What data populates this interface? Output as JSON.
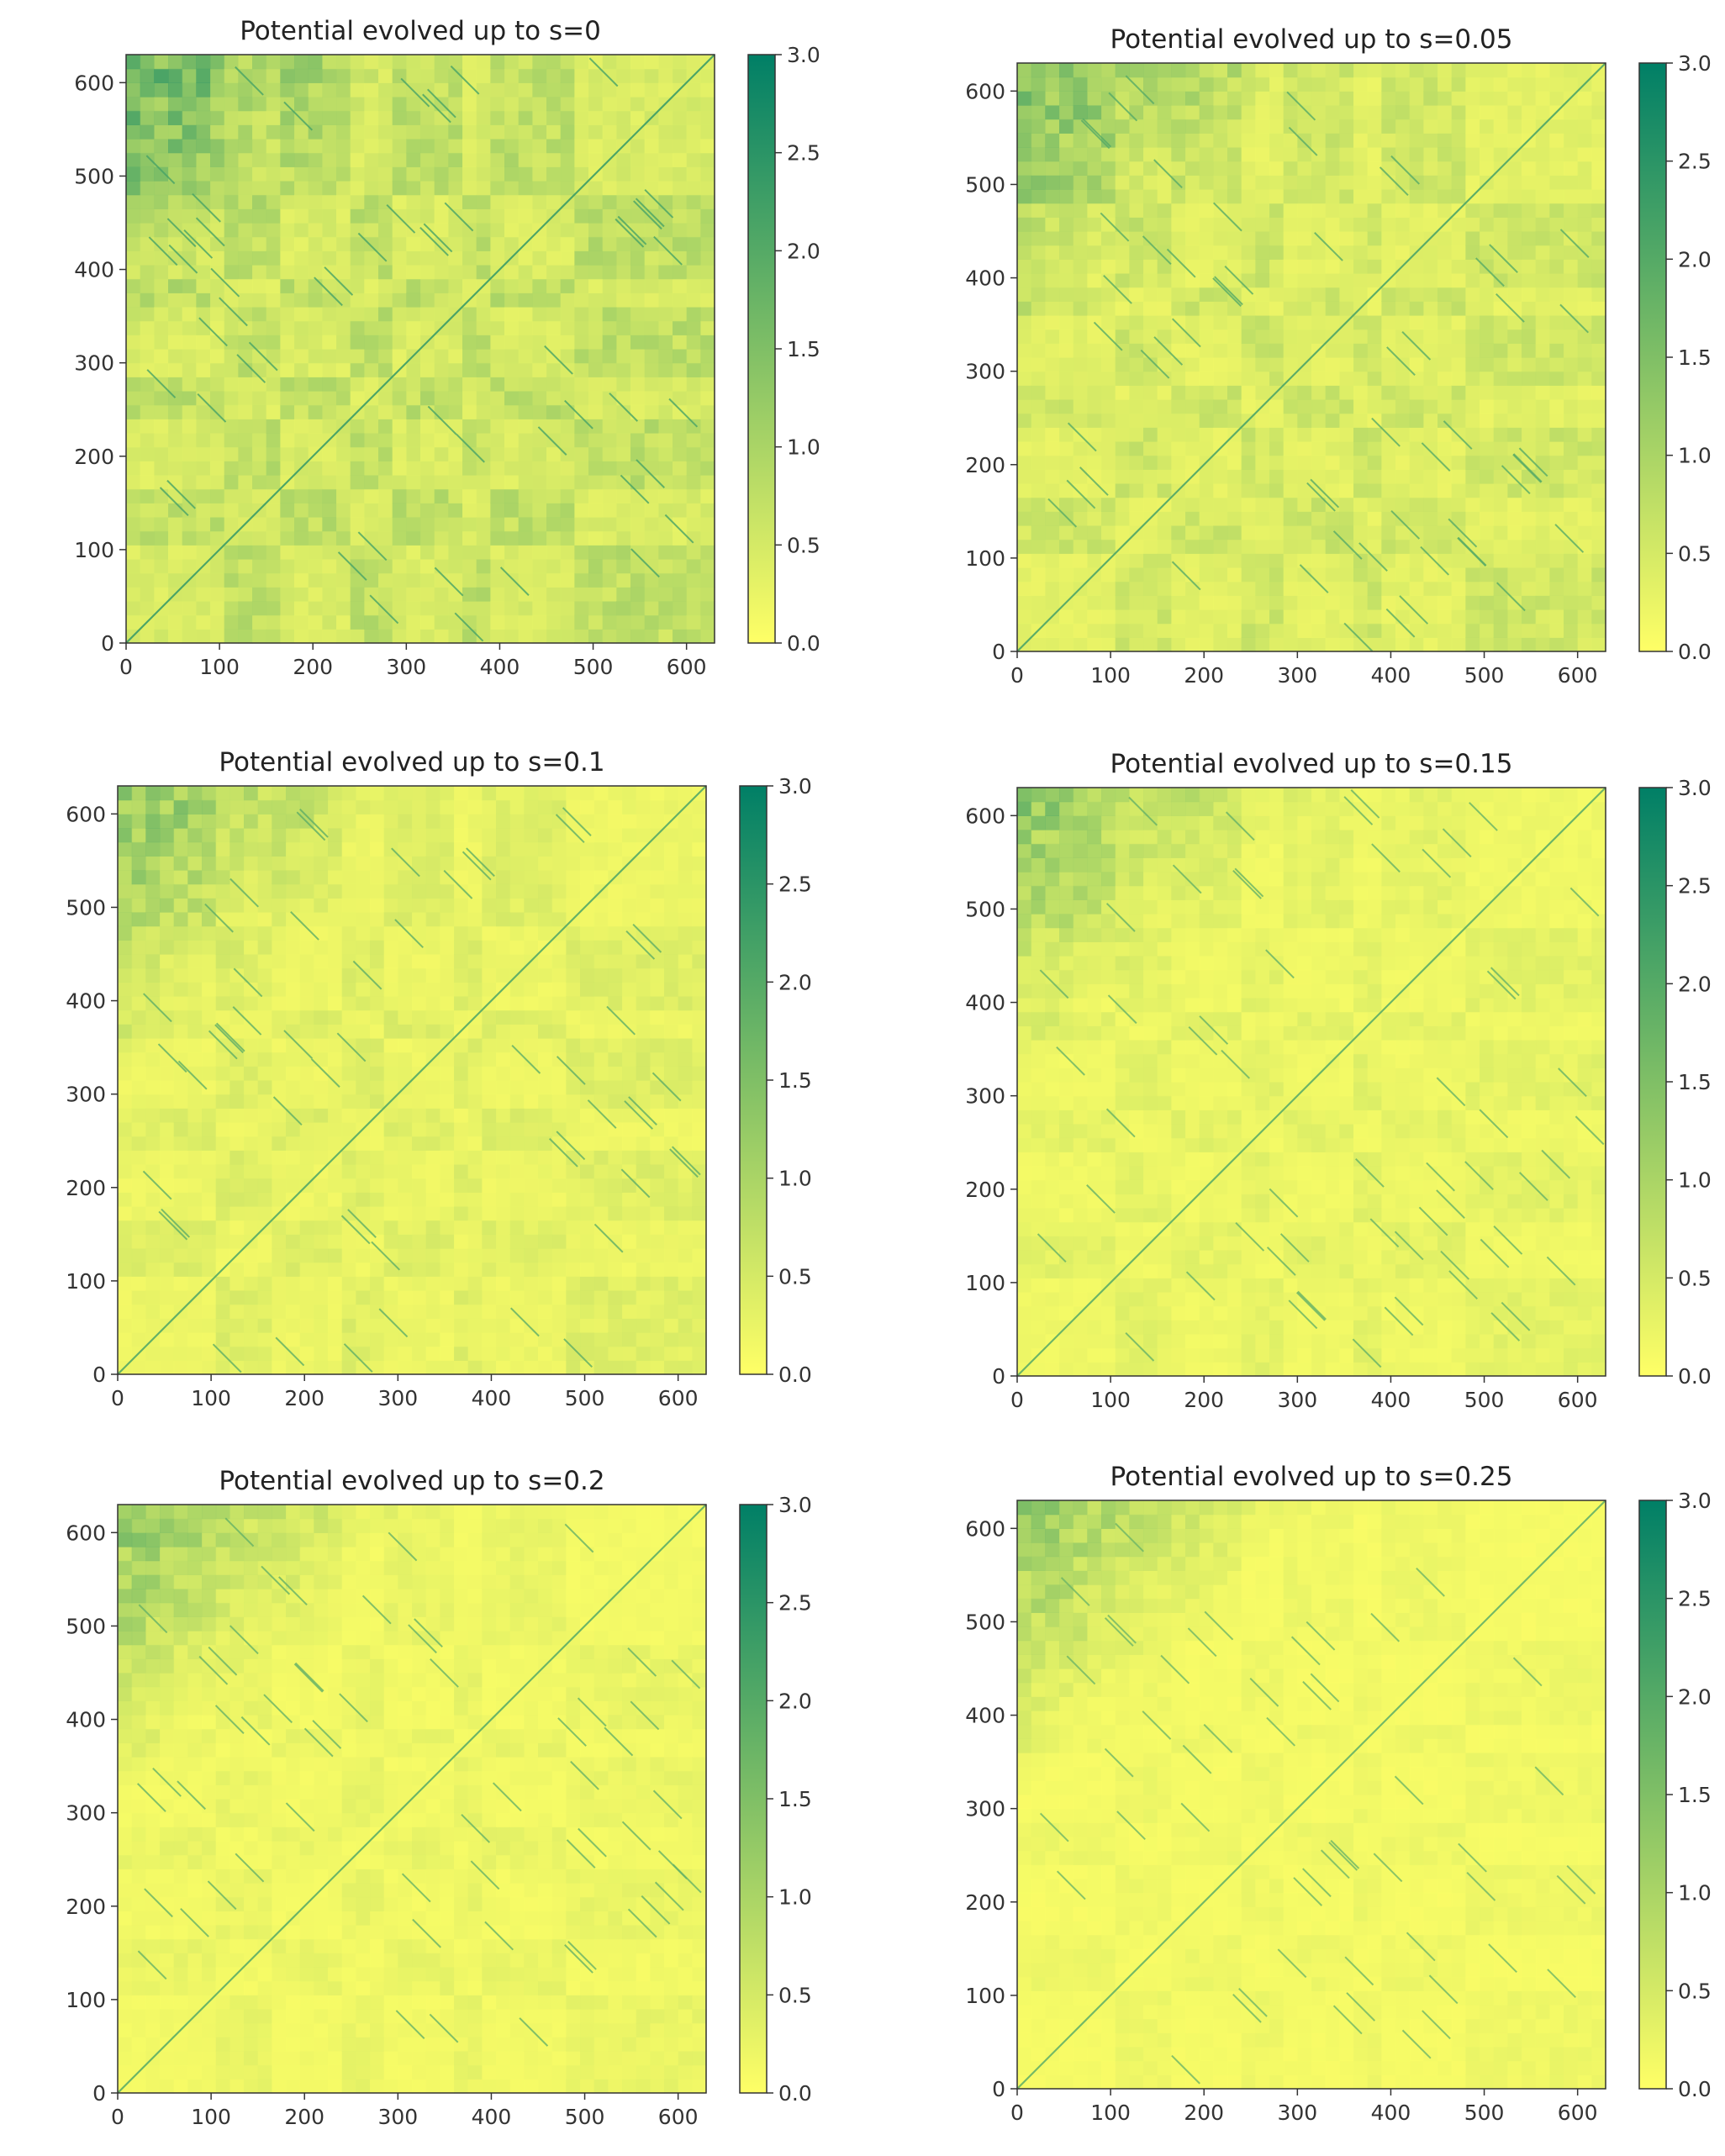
{
  "figure": {
    "colormap": "summer_r",
    "colormap_colors": [
      "#ffff66",
      "#007f66"
    ]
  },
  "chart_data": [
    {
      "type": "heatmap",
      "title": "Potential evolved up to s=0",
      "xlabel": "",
      "ylabel": "",
      "xlim": [
        0,
        630
      ],
      "ylim": [
        0,
        630
      ],
      "xticks": [
        0,
        100,
        200,
        300,
        400,
        500,
        600
      ],
      "yticks": [
        0,
        100,
        200,
        300,
        400,
        500,
        600
      ],
      "colorbar": {
        "range": [
          0.0,
          3.0
        ],
        "ticks": [
          "0.0",
          "0.5",
          "1.0",
          "1.5",
          "2.0",
          "2.5",
          "3.0"
        ]
      },
      "background_level": 0.6,
      "dense_corner_level": 1.6,
      "diagonal_level": 2.4
    },
    {
      "type": "heatmap",
      "title": "Potential evolved up to s=0.05",
      "xlabel": "",
      "ylabel": "",
      "xlim": [
        0,
        630
      ],
      "ylim": [
        0,
        630
      ],
      "xticks": [
        0,
        100,
        200,
        300,
        400,
        500,
        600
      ],
      "yticks": [
        0,
        100,
        200,
        300,
        400,
        500,
        600
      ],
      "ytick_labels": [
        "0",
        "100",
        "200",
        "300",
        "400",
        "500",
        "600"
      ],
      "colorbar": {
        "range": [
          0.0,
          3.0
        ],
        "ticks": [
          "0.0",
          "0.5",
          "1.0",
          "1.5",
          "2.0",
          "2.5",
          "3.0"
        ]
      },
      "background_level": 0.45,
      "dense_corner_level": 1.4,
      "diagonal_level": 2.2
    },
    {
      "type": "heatmap",
      "title": "Potential evolved up to s=0.1",
      "xlabel": "",
      "ylabel": "",
      "xlim": [
        0,
        630
      ],
      "ylim": [
        0,
        630
      ],
      "xticks": [
        0,
        100,
        200,
        300,
        400,
        500,
        600
      ],
      "yticks": [
        0,
        100,
        200,
        300,
        400,
        500,
        600
      ],
      "colorbar": {
        "range": [
          0.0,
          3.0
        ],
        "ticks": [
          "0.0",
          "0.5",
          "1.0",
          "1.5",
          "2.0",
          "2.5",
          "3.0"
        ]
      },
      "background_level": 0.3,
      "dense_corner_level": 1.3,
      "diagonal_level": 2.1
    },
    {
      "type": "heatmap",
      "title": "Potential evolved up to s=0.15",
      "xlabel": "",
      "ylabel": "",
      "xlim": [
        0,
        630
      ],
      "ylim": [
        0,
        630
      ],
      "xticks": [
        0,
        100,
        200,
        300,
        400,
        500,
        600
      ],
      "yticks": [
        0,
        100,
        200,
        300,
        400,
        500,
        600
      ],
      "colorbar": {
        "range": [
          0.0,
          3.0
        ],
        "ticks": [
          "0.0",
          "0.5",
          "1.0",
          "1.5",
          "2.0",
          "2.5",
          "3.0"
        ]
      },
      "background_level": 0.25,
      "dense_corner_level": 1.25,
      "diagonal_level": 2.0
    },
    {
      "type": "heatmap",
      "title": "Potential evolved up to s=0.2",
      "xlabel": "",
      "ylabel": "",
      "xlim": [
        0,
        630
      ],
      "ylim": [
        0,
        630
      ],
      "xticks": [
        0,
        100,
        200,
        300,
        400,
        500,
        600
      ],
      "yticks": [
        0,
        100,
        200,
        300,
        400,
        500,
        600
      ],
      "colorbar": {
        "range": [
          0.0,
          3.0
        ],
        "ticks": [
          "0.0",
          "0.5",
          "1.0",
          "1.5",
          "2.0",
          "2.5",
          "3.0"
        ]
      },
      "background_level": 0.2,
      "dense_corner_level": 1.2,
      "diagonal_level": 2.0
    },
    {
      "type": "heatmap",
      "title": "Potential evolved up to s=0.25",
      "xlabel": "",
      "ylabel": "",
      "xlim": [
        0,
        630
      ],
      "ylim": [
        0,
        630
      ],
      "xticks": [
        0,
        100,
        200,
        300,
        400,
        500,
        600
      ],
      "yticks": [
        0,
        100,
        200,
        300,
        400,
        500,
        600
      ],
      "colorbar": {
        "range": [
          0.0,
          3.0
        ],
        "ticks": [
          "0.0",
          "0.5",
          "1.0",
          "1.5",
          "2.0",
          "2.5",
          "3.0"
        ]
      },
      "background_level": 0.15,
      "dense_corner_level": 1.15,
      "diagonal_level": 1.9
    }
  ]
}
